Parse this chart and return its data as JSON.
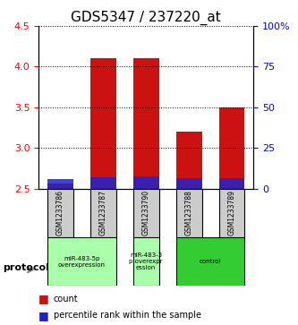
{
  "title": "GDS5347 / 237220_at",
  "samples": [
    "GSM1233786",
    "GSM1233787",
    "GSM1233790",
    "GSM1233788",
    "GSM1233789"
  ],
  "red_values": [
    2.56,
    4.1,
    4.1,
    3.2,
    3.5
  ],
  "blue_values": [
    2.62,
    2.64,
    2.65,
    2.63,
    2.63
  ],
  "bar_bottom": 2.5,
  "ylim_left": [
    2.5,
    4.5
  ],
  "ylim_right": [
    0,
    100
  ],
  "yticks_left": [
    2.5,
    3.0,
    3.5,
    4.0,
    4.5
  ],
  "yticks_right": [
    0,
    25,
    50,
    75,
    100
  ],
  "ytick_labels_right": [
    "0",
    "25",
    "50",
    "75",
    "100%"
  ],
  "red_color": "#cc1111",
  "blue_color": "#2222cc",
  "bar_width": 0.6,
  "groups": [
    {
      "label": "miR-483-5p\noverexpression",
      "samples": [
        0,
        1
      ],
      "color": "#aaffaa"
    },
    {
      "label": "miR-483-3\np overexpr\nession",
      "samples": [
        2
      ],
      "color": "#aaffaa"
    },
    {
      "label": "control",
      "samples": [
        3,
        4
      ],
      "color": "#33cc33"
    }
  ],
  "protocol_label": "protocol",
  "legend_count": "count",
  "legend_percentile": "percentile rank within the sample",
  "sample_box_color": "#cccccc",
  "title_fontsize": 11,
  "axis_label_fontsize": 9,
  "tick_fontsize": 8
}
